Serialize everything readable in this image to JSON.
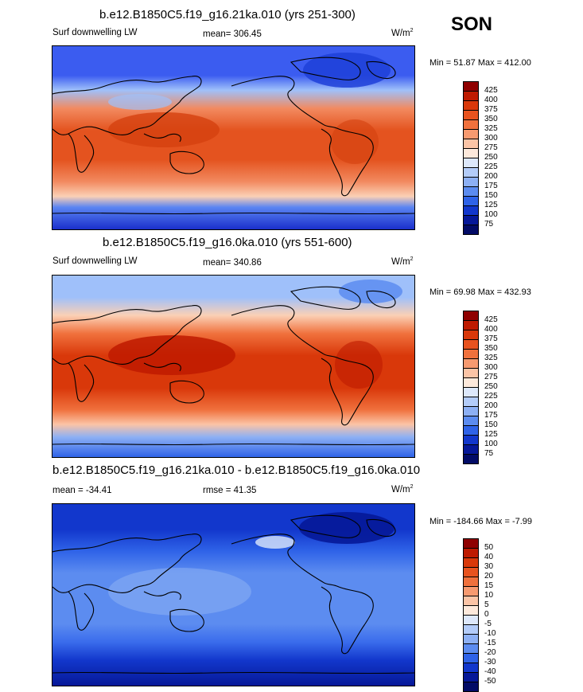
{
  "season": "SON",
  "panels": [
    {
      "title": "b.e12.B1850C5.f19_g16.21ka.010 (yrs 251-300)",
      "left_label": "Surf downwelling LW",
      "mean_label": "mean= 306.45",
      "units": "W/m",
      "units_sup": "2",
      "minmax": "Min =  51.87 Max = 412.00",
      "legend_labels": [
        "425",
        "400",
        "375",
        "350",
        "325",
        "300",
        "275",
        "250",
        "225",
        "200",
        "175",
        "150",
        "125",
        "100",
        "75"
      ],
      "legend_colors": [
        "#8f0000",
        "#be1a00",
        "#d9380a",
        "#e8531f",
        "#f0713d",
        "#f79a70",
        "#fbc4a6",
        "#fde9db",
        "#dde8fb",
        "#b3ccf9",
        "#8db0f4",
        "#5c8cf0",
        "#2f63e8",
        "#1237cc",
        "#061898",
        "#020b66"
      ]
    },
    {
      "title": "b.e12.B1850C5.f19_g16.0ka.010 (yrs 551-600)",
      "left_label": "Surf downwelling LW",
      "mean_label": "mean= 340.86",
      "units": "W/m",
      "units_sup": "2",
      "minmax": "Min =  69.98 Max = 432.93",
      "legend_labels": [
        "425",
        "400",
        "375",
        "350",
        "325",
        "300",
        "275",
        "250",
        "225",
        "200",
        "175",
        "150",
        "125",
        "100",
        "75"
      ],
      "legend_colors": [
        "#8f0000",
        "#be1a00",
        "#d9380a",
        "#e8531f",
        "#f0713d",
        "#f79a70",
        "#fbc4a6",
        "#fde9db",
        "#dde8fb",
        "#b3ccf9",
        "#8db0f4",
        "#5c8cf0",
        "#2f63e8",
        "#1237cc",
        "#061898",
        "#020b66"
      ]
    },
    {
      "title": "b.e12.B1850C5.f19_g16.21ka.010 - b.e12.B1850C5.f19_g16.0ka.010",
      "left_label": "mean = -34.41",
      "mean_label": "rmse =  41.35",
      "units": "W/m",
      "units_sup": "2",
      "minmax": "Min = -184.66 Max =  -7.99",
      "legend_labels": [
        "50",
        "40",
        "30",
        "20",
        "15",
        "10",
        "5",
        "0",
        "-5",
        "-10",
        "-15",
        "-20",
        "-30",
        "-40",
        "-50"
      ],
      "legend_colors": [
        "#8f0000",
        "#be1a00",
        "#d9380a",
        "#e8531f",
        "#f0713d",
        "#f79a70",
        "#fbc4a6",
        "#fde9db",
        "#dde8fb",
        "#b3ccf9",
        "#8db0f4",
        "#5c8cf0",
        "#2f63e8",
        "#1237cc",
        "#061898",
        "#020b66"
      ]
    }
  ],
  "map_fields": [
    {
      "north": "#3b5cf0",
      "arctic_patch": "#1f3fd8",
      "midlat_n": "#9fc0fa",
      "subtrop": "#f28a60",
      "tropics": "#e4531f",
      "warmpool": "#d4410f",
      "midlat_s": "#fbd0b5",
      "sub_ant": "#5a84f2",
      "south": "#1a2fcc"
    },
    {
      "north": "#9fc0fa",
      "arctic_patch": "#5c8cf0",
      "midlat_n": "#fbd0b5",
      "subtrop": "#f0713d",
      "tropics": "#d9380a",
      "warmpool": "#be1a00",
      "midlat_s": "#fbc4a6",
      "sub_ant": "#8db0f4",
      "south": "#2f63e8"
    },
    {
      "north": "#1237cc",
      "arctic_patch": "#061898",
      "midlat_n": "#2f63e8",
      "subtrop": "#5c8cf0",
      "tropics": "#5c8cf0",
      "warmpool": "#8db0f4",
      "midlat_s": "#3a6cec",
      "sub_ant": "#1237cc",
      "south": "#061898"
    }
  ]
}
